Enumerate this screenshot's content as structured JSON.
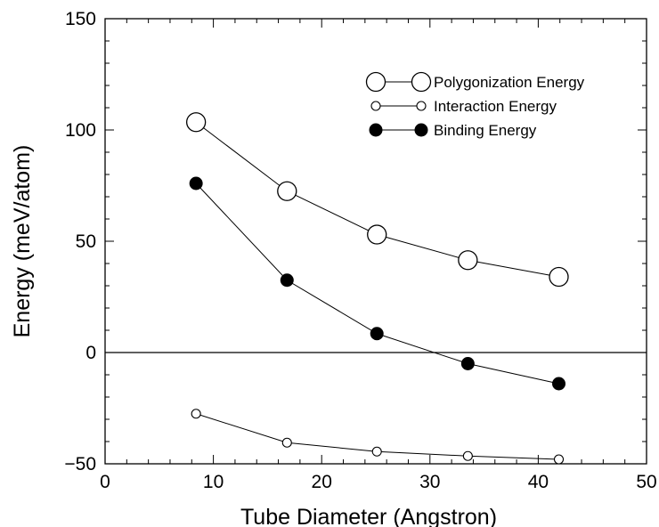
{
  "chart_data": {
    "type": "line",
    "title": "",
    "xlabel": "Tube Diameter (Angstron)",
    "ylabel": "Energy (meV/atom)",
    "xlim": [
      0,
      50
    ],
    "ylim": [
      -50,
      150
    ],
    "x_ticks": [
      0,
      10,
      20,
      30,
      40,
      50
    ],
    "y_ticks": [
      -50,
      0,
      50,
      100,
      150
    ],
    "x_tick_labels": [
      "0",
      "10",
      "20",
      "30",
      "40",
      "50"
    ],
    "y_tick_labels": [
      "−50",
      "0",
      "50",
      "100",
      "150"
    ],
    "reference_line_y": 0,
    "grid": false,
    "legend_position": "top-right",
    "x": [
      8.4,
      16.8,
      25.1,
      33.5,
      41.9
    ],
    "series": [
      {
        "name": "Polygonization Energy",
        "marker": "open-circle-large",
        "values": [
          103.5,
          72.5,
          53,
          41.5,
          34
        ]
      },
      {
        "name": "Interaction Energy",
        "marker": "open-circle-small",
        "values": [
          -27.5,
          -40.5,
          -44.5,
          -46.5,
          -48
        ]
      },
      {
        "name": "Binding Energy",
        "marker": "filled-circle",
        "values": [
          76,
          32.5,
          8.5,
          -5,
          -14
        ]
      }
    ]
  }
}
